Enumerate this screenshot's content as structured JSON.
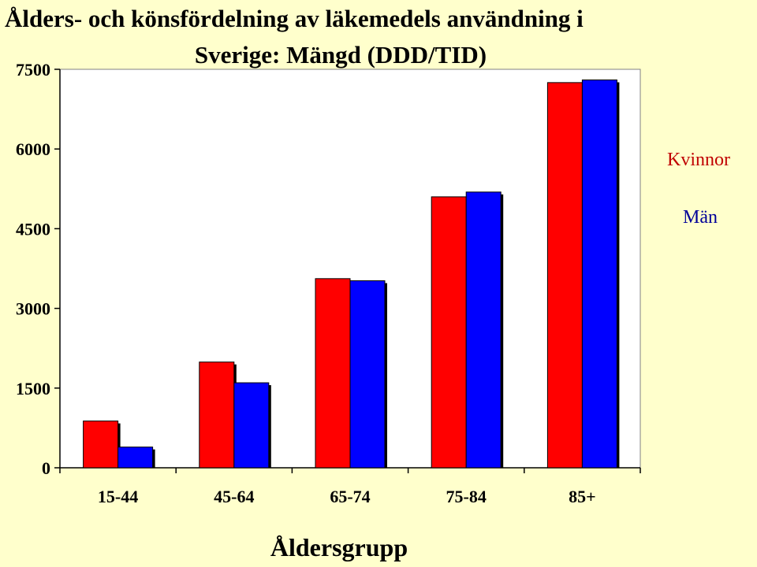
{
  "chart_data": {
    "type": "bar",
    "title": "Ålders- och könsfördelning av läkemedels användning i Sverige: Mängd (DDD/TID)",
    "title_lines": [
      "Ålders- och könsfördelning av läkemedels användning i",
      "Sverige: Mängd (DDD/TID)"
    ],
    "xlabel": "Åldersgrupp",
    "ylabel": "",
    "categories": [
      "15-44",
      "45-64",
      "65-74",
      "75-84",
      "85+"
    ],
    "series": [
      {
        "name": "Kvinnor",
        "color": "#FF0000",
        "values": [
          880,
          1990,
          3560,
          5100,
          7250
        ]
      },
      {
        "name": "Män",
        "color": "#0000FF",
        "values": [
          390,
          1600,
          3520,
          5190,
          7300
        ]
      }
    ],
    "ylim": [
      0,
      7500
    ],
    "yticks": [
      "0",
      "1500",
      "3000",
      "4500",
      "6000",
      "7500"
    ],
    "grid": false,
    "legend_position": "right",
    "background_color": "#FFFFCC"
  }
}
